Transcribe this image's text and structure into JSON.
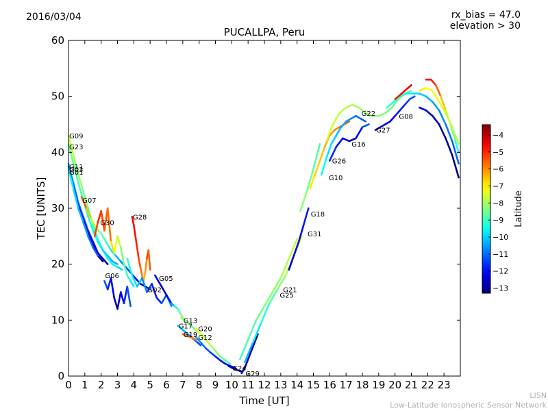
{
  "header": {
    "date": "2016/03/04",
    "rx_bias": "rx_bias = 47.0",
    "elevation": "elevation > 30"
  },
  "credit": {
    "line1": "LISN",
    "line2": "Low-Latitude Ionospheric Sensor Network"
  },
  "chart_data": {
    "type": "scatter",
    "title": "PUCALLPA, Peru",
    "xlabel": "Time [UT]",
    "ylabel": "TEC [UNITS]",
    "xlim": [
      0,
      24
    ],
    "ylim": [
      0,
      60
    ],
    "xticks": [
      0,
      1,
      2,
      3,
      4,
      5,
      6,
      7,
      8,
      9,
      10,
      11,
      12,
      13,
      14,
      15,
      16,
      17,
      18,
      19,
      20,
      21,
      22,
      23
    ],
    "yticks": [
      0,
      10,
      20,
      30,
      40,
      50,
      60
    ],
    "grid": false,
    "colorbar": {
      "label": "Latitude",
      "range": [
        -13.3,
        -3.4
      ],
      "ticks": [
        -4,
        -5,
        -6,
        -7,
        -8,
        -9,
        -10,
        -11,
        -12,
        -13
      ],
      "colormap": [
        "#00007f",
        "#0000ff",
        "#007fff",
        "#00ffff",
        "#7fff7f",
        "#ffff00",
        "#ff7f00",
        "#ff0000",
        "#7f0000"
      ]
    },
    "series": [
      {
        "prn": "G09",
        "label_at": [
          0.0,
          43.0
        ],
        "x": [
          0.0,
          0.3,
          0.6,
          0.9,
          1.2,
          1.5,
          1.8,
          2.1,
          2.4,
          2.7,
          3.0,
          3.3
        ],
        "y": [
          43.0,
          39.5,
          36.0,
          33.0,
          30.0,
          27.0,
          24.5,
          22.5,
          21.0,
          20.0,
          19.5,
          19.0
        ],
        "lat": [
          -7.5,
          -7.8,
          -8.0,
          -8.2,
          -8.5,
          -8.8,
          -9.0,
          -9.2,
          -9.4,
          -9.6,
          -9.8,
          -10.0
        ]
      },
      {
        "prn": "G23",
        "label_at": [
          0.0,
          41.0
        ],
        "x": [
          0.0,
          0.3,
          0.6,
          0.9,
          1.2,
          1.5,
          1.8,
          2.1,
          2.4,
          2.7,
          3.0
        ],
        "y": [
          41.5,
          38.0,
          34.5,
          31.5,
          28.5,
          26.0,
          24.0,
          22.5,
          21.5,
          20.5,
          20.0
        ],
        "lat": [
          -8.5,
          -8.7,
          -8.9,
          -9.1,
          -9.3,
          -9.5,
          -9.7,
          -9.9,
          -10.1,
          -10.3,
          -10.5
        ]
      },
      {
        "prn": "G11",
        "label_at": [
          0.0,
          37.5
        ],
        "x": [
          0.0,
          0.3,
          0.6,
          0.9,
          1.2,
          1.5,
          1.8,
          2.1,
          2.4
        ],
        "y": [
          38.0,
          34.5,
          31.0,
          28.5,
          26.0,
          24.0,
          22.0,
          21.0,
          20.0
        ],
        "lat": [
          -10.0,
          -10.4,
          -10.8,
          -11.2,
          -11.6,
          -12.0,
          -12.4,
          -12.8,
          -13.0
        ]
      },
      {
        "prn": "G03",
        "label_at": [
          0.0,
          37.0
        ],
        "x": [
          0.0,
          0.3,
          0.6,
          0.9,
          1.2,
          1.5,
          1.8,
          2.1
        ],
        "y": [
          37.5,
          34.0,
          30.5,
          28.0,
          25.5,
          23.5,
          21.5,
          20.5
        ],
        "lat": [
          -11.0,
          -11.4,
          -11.8,
          -12.2,
          -12.5,
          -12.8,
          -13.0,
          -13.2
        ]
      },
      {
        "prn": "G01",
        "label_at": [
          0.0,
          36.5
        ],
        "x": [
          0.0,
          0.3,
          0.6,
          0.9,
          1.2,
          1.5,
          1.8
        ],
        "y": [
          37.0,
          33.5,
          30.0,
          27.5,
          25.0,
          23.0,
          21.5
        ],
        "lat": [
          -9.5,
          -9.8,
          -10.1,
          -10.4,
          -10.7,
          -11.0,
          -11.3
        ]
      },
      {
        "prn": "G07",
        "label_at": [
          0.8,
          31.5
        ],
        "x": [
          0.8,
          1.1,
          1.4,
          1.7,
          2.0,
          2.3,
          2.6,
          2.9,
          3.2,
          3.5,
          3.8,
          4.1,
          4.4,
          4.7,
          5.0
        ],
        "y": [
          32.0,
          30.0,
          28.0,
          26.5,
          25.5,
          24.0,
          22.5,
          21.5,
          20.5,
          19.5,
          18.5,
          17.5,
          16.5,
          16.0,
          15.5
        ],
        "lat": [
          -5.0,
          -6.0,
          -7.0,
          -8.0,
          -8.5,
          -9.0,
          -9.5,
          -10.0,
          -10.5,
          -11.0,
          -11.5,
          -12.0,
          -12.5,
          -12.8,
          -13.0
        ]
      },
      {
        "prn": "G30",
        "label_at": [
          1.9,
          27.5
        ],
        "x": [
          1.6,
          1.8,
          2.0,
          2.2,
          2.4,
          2.6,
          2.8,
          3.0,
          3.2,
          3.4,
          3.6,
          3.8,
          4.0
        ],
        "y": [
          25.0,
          27.5,
          29.5,
          26.0,
          30.0,
          24.0,
          22.0,
          25.0,
          23.0,
          20.0,
          18.0,
          17.0,
          16.0
        ],
        "lat": [
          -5.0,
          -5.5,
          -4.5,
          -6.0,
          -5.0,
          -6.5,
          -7.0,
          -7.5,
          -8.0,
          -8.5,
          -9.0,
          -9.5,
          -10.0
        ]
      },
      {
        "prn": "G28",
        "label_at": [
          3.9,
          28.5
        ],
        "x": [
          3.9,
          4.0,
          4.1,
          4.2,
          4.3,
          4.4,
          4.5,
          4.6,
          4.7,
          4.8,
          4.9,
          5.0
        ],
        "y": [
          28.5,
          27.0,
          25.0,
          23.0,
          21.0,
          19.5,
          18.0,
          17.0,
          18.5,
          21.0,
          22.5,
          19.0
        ],
        "lat": [
          -4.5,
          -4.6,
          -4.8,
          -5.0,
          -5.2,
          -5.5,
          -5.8,
          -6.2,
          -6.6,
          -5.5,
          -5.0,
          -6.0
        ]
      },
      {
        "prn": "G06",
        "label_at": [
          2.2,
          18.0
        ],
        "x": [
          2.2,
          2.4,
          2.6,
          2.8,
          3.0,
          3.2,
          3.4,
          3.6,
          3.8
        ],
        "y": [
          17.0,
          15.5,
          17.5,
          14.0,
          12.0,
          15.0,
          13.0,
          16.0,
          12.5
        ],
        "lat": [
          -11.0,
          -11.5,
          -12.0,
          -12.5,
          -13.0,
          -12.5,
          -12.0,
          -11.5,
          -11.0
        ]
      },
      {
        "prn": "G02",
        "label_at": [
          4.8,
          15.5
        ],
        "x": [
          3.6,
          3.9,
          4.2,
          4.5,
          4.8,
          5.1,
          5.4,
          5.7,
          6.0,
          6.3
        ],
        "y": [
          21.0,
          18.0,
          16.0,
          17.5,
          15.0,
          16.5,
          14.0,
          13.0,
          14.5,
          12.5
        ],
        "lat": [
          -9.0,
          -9.5,
          -10.0,
          -10.5,
          -11.0,
          -11.5,
          -12.0,
          -11.5,
          -11.0,
          -10.5
        ]
      },
      {
        "prn": "G05",
        "label_at": [
          5.5,
          17.5
        ],
        "x": [
          5.3,
          5.5,
          5.7,
          5.9,
          6.1,
          6.3,
          6.5,
          6.7,
          6.9,
          7.1
        ],
        "y": [
          18.0,
          17.0,
          16.0,
          15.0,
          14.0,
          13.0,
          12.5,
          12.0,
          11.0,
          10.0
        ],
        "lat": [
          -12.0,
          -12.2,
          -12.4,
          -12.6,
          -12.8,
          -11.0,
          -10.0,
          -9.0,
          -8.5,
          -8.0
        ]
      },
      {
        "prn": "G13",
        "label_at": [
          7.0,
          10.0
        ],
        "x": [
          6.9,
          7.1,
          7.3,
          7.5,
          7.7,
          7.9,
          8.1,
          8.3
        ],
        "y": [
          10.5,
          10.0,
          9.5,
          9.0,
          8.5,
          8.0,
          7.5,
          7.0
        ],
        "lat": [
          -8.0,
          -8.2,
          -8.4,
          -8.6,
          -8.8,
          -9.0,
          -9.2,
          -9.4
        ]
      },
      {
        "prn": "G17",
        "label_at": [
          6.7,
          9.0
        ],
        "x": [
          6.7,
          6.9,
          7.1,
          7.3,
          7.5,
          7.7,
          7.9,
          8.1
        ],
        "y": [
          9.0,
          8.5,
          8.0,
          7.5,
          7.0,
          6.5,
          6.0,
          5.5
        ],
        "lat": [
          -10.0,
          -10.2,
          -10.4,
          -10.6,
          -10.8,
          -11.0,
          -11.2,
          -11.4
        ]
      },
      {
        "prn": "G20",
        "label_at": [
          7.9,
          8.5
        ],
        "x": [
          7.8,
          8.1,
          8.4,
          8.7,
          9.0,
          9.3,
          9.6,
          9.9
        ],
        "y": [
          8.5,
          7.5,
          6.5,
          5.5,
          4.5,
          3.5,
          2.8,
          2.2
        ],
        "lat": [
          -7.0,
          -7.3,
          -7.6,
          -7.9,
          -8.2,
          -8.5,
          -8.8,
          -9.1
        ]
      },
      {
        "prn": "G19",
        "label_at": [
          7.0,
          7.5
        ],
        "x": [
          7.0,
          7.2,
          7.4,
          7.6,
          7.8
        ],
        "y": [
          7.5,
          7.3,
          7.0,
          6.8,
          6.5
        ],
        "lat": [
          -5.5,
          -5.6,
          -5.7,
          -5.8,
          -5.9
        ]
      },
      {
        "prn": "G12",
        "label_at": [
          7.9,
          7.0
        ],
        "x": [
          7.8,
          8.1,
          8.4,
          8.7,
          9.0,
          9.3,
          9.6,
          9.9,
          10.2
        ],
        "y": [
          7.0,
          6.0,
          5.0,
          4.2,
          3.5,
          2.8,
          2.2,
          1.8,
          1.5
        ],
        "lat": [
          -10.5,
          -10.8,
          -11.1,
          -11.4,
          -11.7,
          -12.0,
          -12.3,
          -12.6,
          -12.9
        ]
      },
      {
        "prn": "G24",
        "label_at": [
          10.0,
          1.5
        ],
        "x": [
          9.8,
          10.0,
          10.2,
          10.4,
          10.6
        ],
        "y": [
          1.8,
          1.5,
          1.2,
          1.0,
          0.8
        ],
        "lat": [
          -12.0,
          -12.3,
          -12.6,
          -12.9,
          -13.1
        ]
      },
      {
        "prn": "G29",
        "label_at": [
          10.8,
          0.5
        ],
        "x": [
          10.6,
          10.8,
          11.0,
          11.2,
          11.4,
          11.6
        ],
        "y": [
          0.5,
          1.5,
          3.0,
          4.5,
          6.0,
          7.5
        ],
        "lat": [
          -12.5,
          -12.7,
          -12.9,
          -13.0,
          -13.1,
          -13.2
        ]
      },
      {
        "prn": "G25",
        "label_at": [
          12.9,
          14.5
        ],
        "x": [
          10.5,
          11.0,
          11.5,
          12.0,
          12.5,
          13.0,
          13.5,
          14.0
        ],
        "y": [
          3.0,
          6.5,
          10.0,
          12.5,
          15.0,
          17.5,
          21.0,
          24.5
        ],
        "lat": [
          -9.0,
          -8.8,
          -8.6,
          -8.4,
          -8.2,
          -8.0,
          -7.8,
          -7.6
        ]
      },
      {
        "prn": "G21",
        "label_at": [
          13.1,
          15.5
        ],
        "x": [
          10.8,
          11.3,
          11.8,
          12.3,
          12.8,
          13.3,
          13.8,
          14.3
        ],
        "y": [
          2.5,
          6.0,
          9.5,
          13.0,
          15.5,
          18.0,
          21.5,
          25.0
        ],
        "lat": [
          -10.5,
          -10.0,
          -9.5,
          -9.0,
          -8.5,
          -8.0,
          -7.5,
          -7.0
        ]
      },
      {
        "prn": "G31",
        "label_at": [
          14.6,
          25.5
        ],
        "x": [
          13.5,
          13.8,
          14.1,
          14.4,
          14.7
        ],
        "y": [
          19.0,
          21.5,
          24.0,
          27.0,
          30.0
        ],
        "lat": [
          -12.5,
          -12.3,
          -12.1,
          -11.9,
          -11.7
        ]
      },
      {
        "prn": "G18",
        "label_at": [
          14.8,
          29.0
        ],
        "x": [
          14.2,
          14.6,
          15.0,
          15.4
        ],
        "y": [
          29.5,
          33.0,
          37.0,
          41.5
        ],
        "lat": [
          -8.0,
          -8.3,
          -8.6,
          -8.9
        ]
      },
      {
        "prn": "G10",
        "label_at": [
          15.9,
          35.5
        ],
        "x": [
          14.8,
          15.1,
          15.4,
          15.7,
          16.0,
          16.3,
          16.6,
          16.9,
          17.2
        ],
        "y": [
          33.5,
          36.0,
          38.5,
          41.0,
          43.0,
          44.0,
          44.5,
          45.0,
          45.5
        ],
        "lat": [
          -7.0,
          -6.8,
          -6.6,
          -6.4,
          -6.2,
          -6.0,
          -5.8,
          -5.6,
          -5.5
        ]
      },
      {
        "prn": "G26",
        "label_at": [
          16.1,
          38.5
        ],
        "x": [
          15.5,
          15.8,
          16.1,
          16.4,
          16.7,
          17.0,
          17.3,
          17.6,
          17.9,
          18.2
        ],
        "y": [
          36.0,
          39.0,
          41.5,
          43.0,
          44.5,
          45.5,
          46.0,
          46.5,
          46.0,
          45.5
        ],
        "lat": [
          -9.5,
          -9.7,
          -9.9,
          -10.1,
          -10.3,
          -10.5,
          -10.7,
          -10.9,
          -11.1,
          -11.3
        ]
      },
      {
        "prn": "G16",
        "label_at": [
          17.3,
          41.5
        ],
        "x": [
          16.0,
          16.4,
          16.8,
          17.2,
          17.6,
          18.0,
          18.4
        ],
        "y": [
          38.5,
          41.0,
          42.5,
          42.0,
          42.5,
          44.5,
          45.0
        ],
        "lat": [
          -11.5,
          -11.8,
          -12.1,
          -12.4,
          -12.7,
          -11.5,
          -11.0
        ]
      },
      {
        "prn": "G22",
        "label_at": [
          17.9,
          47.0
        ],
        "x": [
          15.8,
          16.2,
          16.6,
          17.0,
          17.4,
          17.8,
          18.2,
          18.6,
          19.0,
          19.4,
          19.8,
          20.2,
          20.6,
          21.0
        ],
        "y": [
          42.0,
          45.0,
          47.0,
          48.0,
          48.5,
          48.0,
          47.0,
          46.5,
          46.5,
          47.0,
          48.0,
          49.5,
          50.5,
          51.0
        ],
        "lat": [
          -7.5,
          -7.6,
          -7.7,
          -7.8,
          -7.9,
          -8.0,
          -8.1,
          -8.2,
          -8.3,
          -8.4,
          -8.5,
          -8.6,
          -8.7,
          -8.8
        ]
      },
      {
        "prn": "G27",
        "label_at": [
          18.8,
          44.0
        ],
        "x": [
          18.8,
          19.1,
          19.4,
          19.7,
          20.0,
          20.3,
          20.6,
          20.9,
          21.2
        ],
        "y": [
          44.0,
          44.5,
          45.0,
          45.5,
          46.5,
          47.5,
          48.5,
          49.5,
          50.0
        ],
        "lat": [
          -12.8,
          -12.6,
          -12.4,
          -12.2,
          -12.0,
          -11.8,
          -11.6,
          -11.4,
          -11.2
        ]
      },
      {
        "prn": "G08",
        "label_at": [
          20.2,
          46.5
        ],
        "x": [
          19.5,
          19.9,
          20.3,
          20.7,
          21.1,
          21.5,
          21.9,
          22.3,
          22.7,
          23.1,
          23.5,
          23.9
        ],
        "y": [
          48.0,
          49.0,
          50.0,
          50.5,
          50.5,
          50.5,
          50.0,
          49.0,
          47.5,
          45.0,
          42.0,
          38.0
        ],
        "lat": [
          -9.0,
          -9.2,
          -9.4,
          -9.6,
          -9.8,
          -10.0,
          -10.2,
          -10.4,
          -10.6,
          -10.8,
          -11.0,
          -11.2
        ]
      },
      {
        "prn": "",
        "x": [
          21.5,
          21.9,
          22.3,
          22.7,
          23.1,
          23.5,
          23.9
        ],
        "y": [
          48.0,
          47.5,
          46.5,
          45.0,
          42.5,
          39.5,
          35.5
        ],
        "lat": [
          -12.0,
          -12.3,
          -12.6,
          -12.9,
          -13.1,
          -13.2,
          -13.3
        ]
      },
      {
        "prn": "",
        "x": [
          21.9,
          22.2,
          22.5,
          22.8,
          23.1,
          23.4,
          23.7,
          23.9
        ],
        "y": [
          53.0,
          53.0,
          52.0,
          50.0,
          47.5,
          45.0,
          42.0,
          40.0
        ],
        "lat": [
          -4.5,
          -4.7,
          -5.2,
          -6.0,
          -7.0,
          -8.0,
          -9.0,
          -9.5
        ]
      },
      {
        "prn": "",
        "x": [
          21.5,
          21.9,
          22.3,
          22.7,
          23.1,
          23.5,
          23.9
        ],
        "y": [
          51.0,
          51.5,
          51.0,
          49.0,
          47.0,
          44.5,
          41.5
        ],
        "lat": [
          -6.8,
          -7.0,
          -7.2,
          -7.4,
          -7.6,
          -7.8,
          -8.0
        ]
      },
      {
        "prn": "",
        "x": [
          20.0,
          20.4,
          20.8,
          21.0
        ],
        "y": [
          49.5,
          50.5,
          51.5,
          52.0
        ],
        "lat": [
          -5.0,
          -4.8,
          -4.5,
          -4.3
        ]
      }
    ]
  }
}
